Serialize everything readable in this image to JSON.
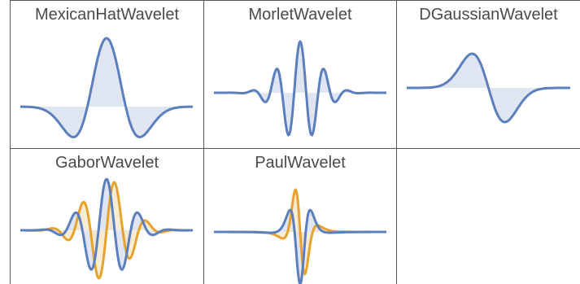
{
  "colors": {
    "real": "#5b7fbd",
    "real_fill": "#dbe2ef",
    "imag": "#e5a32e",
    "imag_fill": "#f7e6c6",
    "grid": "#555555"
  },
  "panels": [
    {
      "title": "MexicanHatWavelet",
      "wavelet": "mexican-hat",
      "components": [
        "real"
      ]
    },
    {
      "title": "MorletWavelet",
      "wavelet": "morlet",
      "components": [
        "real"
      ]
    },
    {
      "title": "DGaussianWavelet",
      "wavelet": "dgaussian",
      "components": [
        "real"
      ]
    },
    {
      "title": "GaborWavelet",
      "wavelet": "gabor",
      "components": [
        "real",
        "imag"
      ]
    },
    {
      "title": "PaulWavelet",
      "wavelet": "paul",
      "components": [
        "real",
        "imag"
      ]
    },
    {
      "title": "",
      "wavelet": "",
      "components": []
    }
  ]
}
